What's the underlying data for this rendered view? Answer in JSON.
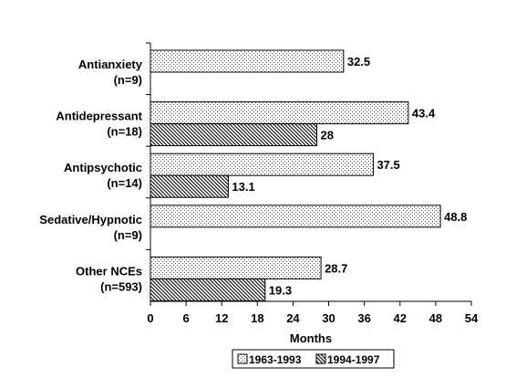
{
  "chart_data": {
    "type": "bar",
    "orientation": "horizontal",
    "categories": [
      [
        "Antianxiety",
        "(n=9)"
      ],
      [
        "Antidepressant",
        "(n=18)"
      ],
      [
        "Antipsychotic",
        "(n=14)"
      ],
      [
        "Sedative/Hypnotic",
        "(n=9)"
      ],
      [
        "Other NCEs",
        "(n=593)"
      ]
    ],
    "series": [
      {
        "name": "1963-1993",
        "values": [
          32.5,
          43.4,
          37.5,
          48.8,
          28.7
        ],
        "labels": [
          "32.5",
          "43.4",
          "37.5",
          "48.8",
          "28.7"
        ],
        "pattern": "dots"
      },
      {
        "name": "1994-1997",
        "values": [
          null,
          28,
          13.1,
          null,
          19.3
        ],
        "labels": [
          "",
          "28",
          "13.1",
          "",
          "19.3"
        ],
        "pattern": "hatch"
      }
    ],
    "xlabel": "Months",
    "xlim": [
      0,
      54
    ],
    "xticks": [
      "0",
      "6",
      "12",
      "18",
      "24",
      "30",
      "36",
      "42",
      "48",
      "54"
    ],
    "grid": false,
    "legend_position": "bottom"
  }
}
